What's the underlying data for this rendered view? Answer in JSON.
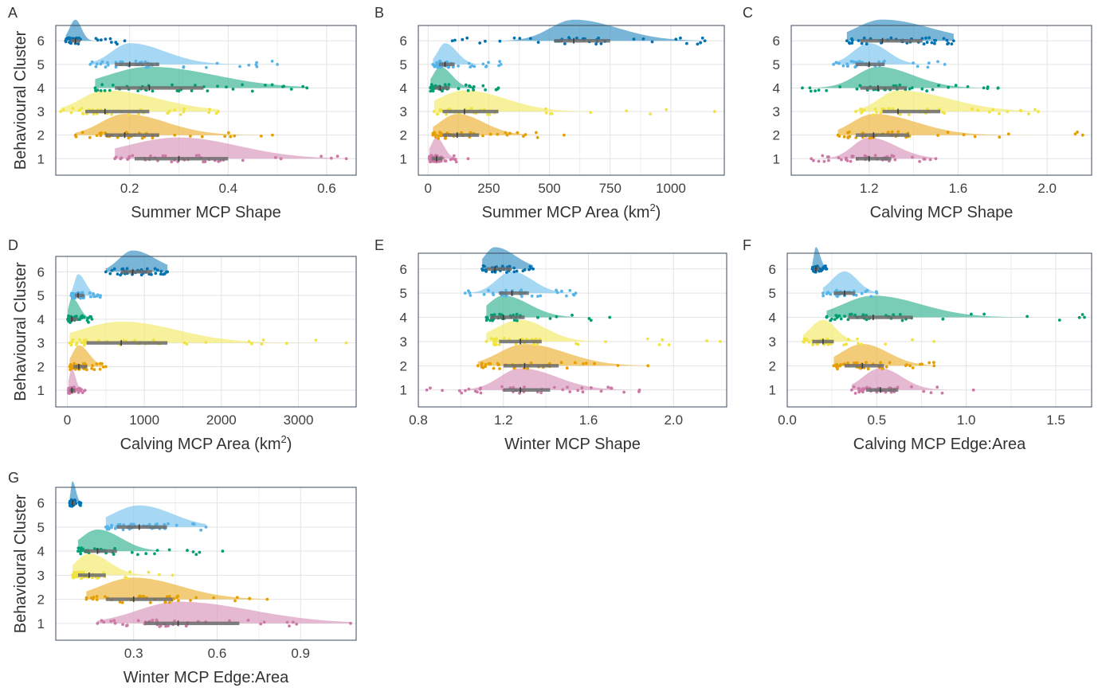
{
  "figure": {
    "y_axis_label": "Behavioural Cluster",
    "cluster_colors": {
      "1": "#cc79a7",
      "2": "#e69f00",
      "3": "#f0e442",
      "4": "#009e73",
      "5": "#56b4e9",
      "6": "#0072b2"
    },
    "box_color": "#6b6b6b"
  },
  "chart_data": [
    {
      "panel": "A",
      "type": "raincloud",
      "xlabel": "Summer MCP Shape",
      "xlabel_unit_superscript": "",
      "xlim": [
        0.05,
        0.66
      ],
      "xticks": [
        0.2,
        0.4,
        0.6
      ],
      "xtick_labels": [
        "0.2",
        "0.4",
        "0.6"
      ],
      "ylabel": "Behavioural Cluster",
      "categories": [
        "1",
        "2",
        "3",
        "4",
        "5",
        "6"
      ],
      "series": [
        {
          "cluster": "1",
          "min": 0.17,
          "q1": 0.21,
          "median": 0.3,
          "q3": 0.4,
          "max": 0.64
        },
        {
          "cluster": "2",
          "min": 0.09,
          "q1": 0.15,
          "median": 0.19,
          "q3": 0.26,
          "max": 0.49
        },
        {
          "cluster": "3",
          "min": 0.06,
          "q1": 0.11,
          "median": 0.15,
          "q3": 0.24,
          "max": 0.38
        },
        {
          "cluster": "4",
          "min": 0.13,
          "q1": 0.17,
          "median": 0.24,
          "q3": 0.35,
          "max": 0.56
        },
        {
          "cluster": "5",
          "min": 0.12,
          "q1": 0.17,
          "median": 0.2,
          "q3": 0.26,
          "max": 0.5
        },
        {
          "cluster": "6",
          "min": 0.07,
          "q1": 0.08,
          "median": 0.09,
          "q3": 0.1,
          "max": 0.19
        }
      ]
    },
    {
      "panel": "B",
      "type": "raincloud",
      "xlabel": "Summer MCP Area (km",
      "xlabel_unit_superscript": "2",
      "xlim": [
        -40,
        1220
      ],
      "xticks": [
        0,
        250,
        500,
        750,
        1000
      ],
      "xtick_labels": [
        "0",
        "250",
        "500",
        "750",
        "1000"
      ],
      "ylabel": "",
      "categories": [
        "1",
        "2",
        "3",
        "4",
        "5",
        "6"
      ],
      "series": [
        {
          "cluster": "1",
          "min": 5,
          "q1": 15,
          "median": 35,
          "q3": 60,
          "max": 165
        },
        {
          "cluster": "2",
          "min": 20,
          "q1": 60,
          "median": 120,
          "q3": 210,
          "max": 560
        },
        {
          "cluster": "3",
          "min": 25,
          "q1": 60,
          "median": 150,
          "q3": 290,
          "max": 1180
        },
        {
          "cluster": "4",
          "min": 10,
          "q1": 25,
          "median": 50,
          "q3": 90,
          "max": 290
        },
        {
          "cluster": "5",
          "min": 20,
          "q1": 45,
          "median": 70,
          "q3": 110,
          "max": 300
        },
        {
          "cluster": "6",
          "min": 100,
          "q1": 520,
          "median": 600,
          "q3": 750,
          "max": 1140
        }
      ]
    },
    {
      "panel": "C",
      "type": "raincloud",
      "xlabel": "Calving MCP Shape",
      "xlabel_unit_superscript": "",
      "xlim": [
        0.85,
        2.2
      ],
      "xticks": [
        1.2,
        1.6,
        2.0
      ],
      "xtick_labels": [
        "1.2",
        "1.6",
        "2.0"
      ],
      "ylabel": "",
      "categories": [
        "1",
        "2",
        "3",
        "4",
        "5",
        "6"
      ],
      "series": [
        {
          "cluster": "1",
          "min": 0.94,
          "q1": 1.14,
          "median": 1.2,
          "q3": 1.3,
          "max": 1.5
        },
        {
          "cluster": "2",
          "min": 1.06,
          "q1": 1.14,
          "median": 1.22,
          "q3": 1.38,
          "max": 2.16
        },
        {
          "cluster": "3",
          "min": 1.14,
          "q1": 1.26,
          "median": 1.33,
          "q3": 1.52,
          "max": 1.96
        },
        {
          "cluster": "4",
          "min": 0.9,
          "q1": 1.16,
          "median": 1.24,
          "q3": 1.37,
          "max": 1.78
        },
        {
          "cluster": "5",
          "min": 1.04,
          "q1": 1.14,
          "median": 1.2,
          "q3": 1.27,
          "max": 1.54
        },
        {
          "cluster": "6",
          "min": 1.1,
          "q1": 1.16,
          "median": 1.26,
          "q3": 1.44,
          "max": 1.58
        }
      ]
    },
    {
      "panel": "D",
      "type": "raincloud",
      "xlabel": "Calving MCP Area (km",
      "xlabel_unit_superscript": "2",
      "xlim": [
        -150,
        3750
      ],
      "xticks": [
        0,
        1000,
        2000,
        3000
      ],
      "xtick_labels": [
        "0",
        "1000",
        "2000",
        "3000"
      ],
      "ylabel": "Behavioural Cluster",
      "categories": [
        "1",
        "2",
        "3",
        "4",
        "5",
        "6"
      ],
      "series": [
        {
          "cluster": "1",
          "min": 15,
          "q1": 30,
          "median": 60,
          "q3": 100,
          "max": 230
        },
        {
          "cluster": "2",
          "min": 30,
          "q1": 80,
          "median": 150,
          "q3": 260,
          "max": 500
        },
        {
          "cluster": "3",
          "min": 30,
          "q1": 250,
          "median": 700,
          "q3": 1300,
          "max": 3620
        },
        {
          "cluster": "4",
          "min": 5,
          "q1": 25,
          "median": 60,
          "q3": 140,
          "max": 320
        },
        {
          "cluster": "5",
          "min": 50,
          "q1": 100,
          "median": 140,
          "q3": 220,
          "max": 430
        },
        {
          "cluster": "6",
          "min": 500,
          "q1": 700,
          "median": 850,
          "q3": 1100,
          "max": 1300
        }
      ]
    },
    {
      "panel": "E",
      "type": "raincloud",
      "xlabel": "Winter MCP Shape",
      "xlabel_unit_superscript": "",
      "xlim": [
        0.8,
        2.25
      ],
      "xticks": [
        0.8,
        1.2,
        1.6,
        2.0
      ],
      "xtick_labels": [
        "0.8",
        "1.2",
        "1.6",
        "2.0"
      ],
      "ylabel": "",
      "categories": [
        "1",
        "2",
        "3",
        "4",
        "5",
        "6"
      ],
      "series": [
        {
          "cluster": "1",
          "min": 0.84,
          "q1": 1.2,
          "median": 1.28,
          "q3": 1.42,
          "max": 1.84
        },
        {
          "cluster": "2",
          "min": 1.08,
          "q1": 1.2,
          "median": 1.3,
          "q3": 1.46,
          "max": 1.88
        },
        {
          "cluster": "3",
          "min": 1.12,
          "q1": 1.18,
          "median": 1.28,
          "q3": 1.38,
          "max": 2.22
        },
        {
          "cluster": "4",
          "min": 1.12,
          "q1": 1.14,
          "median": 1.2,
          "q3": 1.3,
          "max": 1.7
        },
        {
          "cluster": "5",
          "min": 1.02,
          "q1": 1.18,
          "median": 1.24,
          "q3": 1.32,
          "max": 1.54
        },
        {
          "cluster": "6",
          "min": 1.1,
          "q1": 1.12,
          "median": 1.16,
          "q3": 1.24,
          "max": 1.34
        }
      ]
    },
    {
      "panel": "F",
      "type": "raincloud",
      "xlabel": "Calving MCP Edge:Area",
      "xlabel_unit_superscript": "",
      "xlim": [
        0.0,
        1.7
      ],
      "xticks": [
        0.0,
        0.5,
        1.0,
        1.5
      ],
      "xtick_labels": [
        "0.0",
        "0.5",
        "1.0",
        "1.5"
      ],
      "ylabel": "",
      "categories": [
        "1",
        "2",
        "3",
        "4",
        "5",
        "6"
      ],
      "series": [
        {
          "cluster": "1",
          "min": 0.36,
          "q1": 0.44,
          "median": 0.52,
          "q3": 0.62,
          "max": 1.04
        },
        {
          "cluster": "2",
          "min": 0.26,
          "q1": 0.32,
          "median": 0.42,
          "q3": 0.54,
          "max": 0.82
        },
        {
          "cluster": "3",
          "min": 0.09,
          "q1": 0.14,
          "median": 0.2,
          "q3": 0.26,
          "max": 0.82
        },
        {
          "cluster": "4",
          "min": 0.22,
          "q1": 0.34,
          "median": 0.48,
          "q3": 0.7,
          "max": 1.66
        },
        {
          "cluster": "5",
          "min": 0.2,
          "q1": 0.26,
          "median": 0.32,
          "q3": 0.38,
          "max": 0.5
        },
        {
          "cluster": "6",
          "min": 0.14,
          "q1": 0.15,
          "median": 0.16,
          "q3": 0.18,
          "max": 0.22
        }
      ]
    },
    {
      "panel": "G",
      "type": "raincloud",
      "xlabel": "Winter MCP Edge:Area",
      "xlabel_unit_superscript": "",
      "xlim": [
        0.02,
        1.1
      ],
      "xticks": [
        0.3,
        0.6,
        0.9
      ],
      "xtick_labels": [
        "0.3",
        "0.6",
        "0.9"
      ],
      "ylabel": "Behavioural Cluster",
      "categories": [
        "1",
        "2",
        "3",
        "4",
        "5",
        "6"
      ],
      "series": [
        {
          "cluster": "1",
          "min": 0.17,
          "q1": 0.34,
          "median": 0.46,
          "q3": 0.68,
          "max": 1.08
        },
        {
          "cluster": "2",
          "min": 0.13,
          "q1": 0.2,
          "median": 0.3,
          "q3": 0.44,
          "max": 0.78
        },
        {
          "cluster": "3",
          "min": 0.08,
          "q1": 0.1,
          "median": 0.14,
          "q3": 0.2,
          "max": 0.44
        },
        {
          "cluster": "4",
          "min": 0.1,
          "q1": 0.12,
          "median": 0.17,
          "q3": 0.24,
          "max": 0.62
        },
        {
          "cluster": "5",
          "min": 0.2,
          "q1": 0.24,
          "median": 0.32,
          "q3": 0.42,
          "max": 0.56
        },
        {
          "cluster": "6",
          "min": 0.07,
          "q1": 0.075,
          "median": 0.08,
          "q3": 0.09,
          "max": 0.11
        }
      ]
    }
  ]
}
